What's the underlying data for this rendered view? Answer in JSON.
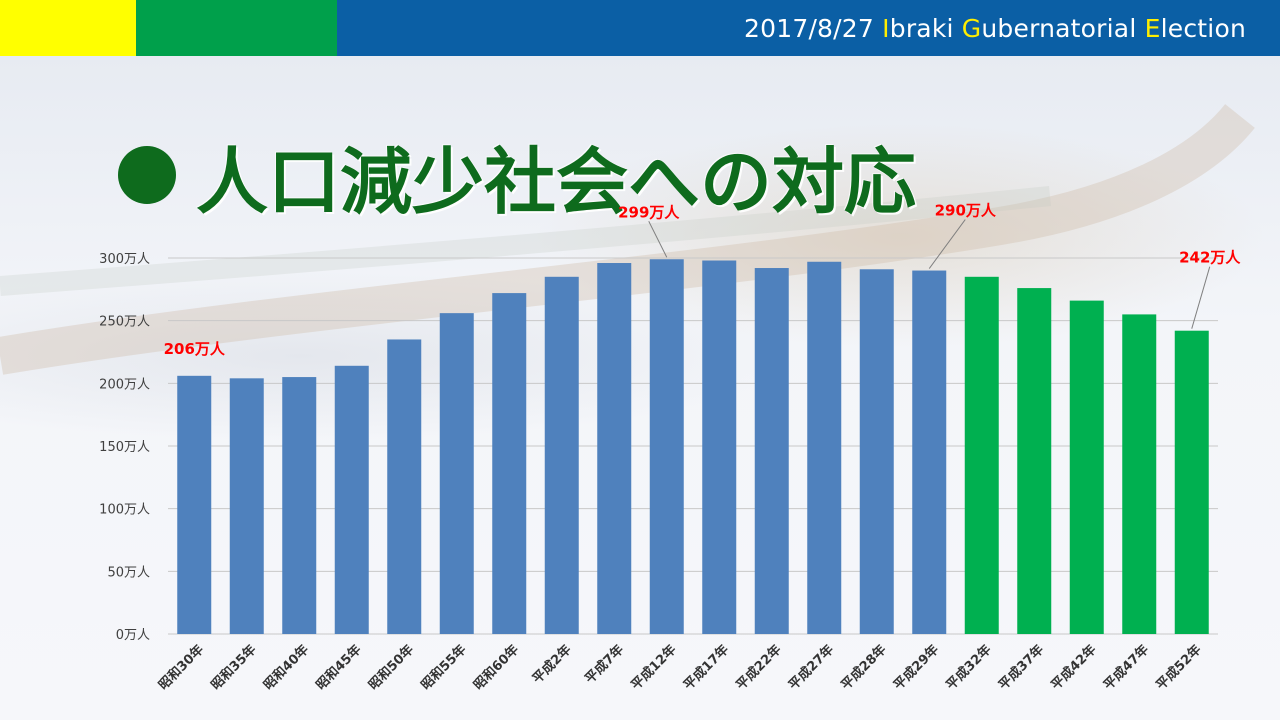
{
  "header": {
    "date": "2017/8/27",
    "words": [
      {
        "initial": "I",
        "rest": "braki"
      },
      {
        "initial": "G",
        "rest": "ubernatorial"
      },
      {
        "initial": "E",
        "rest": "lection"
      }
    ],
    "colors": {
      "yellow": "#ffff00",
      "green": "#00a04b",
      "blue": "#0b5fa5",
      "highlight": "#ffee00"
    }
  },
  "title": {
    "bullet": "●",
    "text": "人口減少社会への対応",
    "color": "#0e6b1d"
  },
  "chart_data": {
    "type": "bar",
    "title": "",
    "xlabel": "",
    "ylabel": "",
    "unit": "万人",
    "ylim": [
      0,
      300
    ],
    "yticks": [
      0,
      50,
      100,
      150,
      200,
      250,
      300
    ],
    "ytick_labels": [
      "0万人",
      "50万人",
      "100万人",
      "150万人",
      "200万人",
      "250万人",
      "300万人"
    ],
    "grid": true,
    "categories": [
      "昭和30年",
      "昭和35年",
      "昭和40年",
      "昭和45年",
      "昭和50年",
      "昭和55年",
      "昭和60年",
      "平成2年",
      "平成7年",
      "平成12年",
      "平成17年",
      "平成22年",
      "平成27年",
      "平成28年",
      "平成29年",
      "平成32年",
      "平成37年",
      "平成42年",
      "平成47年",
      "平成52年"
    ],
    "values": [
      206,
      204,
      205,
      214,
      235,
      256,
      272,
      285,
      296,
      299,
      298,
      292,
      297,
      291,
      290,
      285,
      276,
      266,
      255,
      242
    ],
    "colors": [
      "#4f81bd",
      "#4f81bd",
      "#4f81bd",
      "#4f81bd",
      "#4f81bd",
      "#4f81bd",
      "#4f81bd",
      "#4f81bd",
      "#4f81bd",
      "#4f81bd",
      "#4f81bd",
      "#4f81bd",
      "#4f81bd",
      "#4f81bd",
      "#4f81bd",
      "#00b050",
      "#00b050",
      "#00b050",
      "#00b050",
      "#00b050"
    ],
    "annotations": [
      {
        "index": 0,
        "text": "206万人"
      },
      {
        "index": 9,
        "text": "299万人"
      },
      {
        "index": 14,
        "text": "290万人"
      },
      {
        "index": 19,
        "text": "242万人"
      }
    ]
  }
}
